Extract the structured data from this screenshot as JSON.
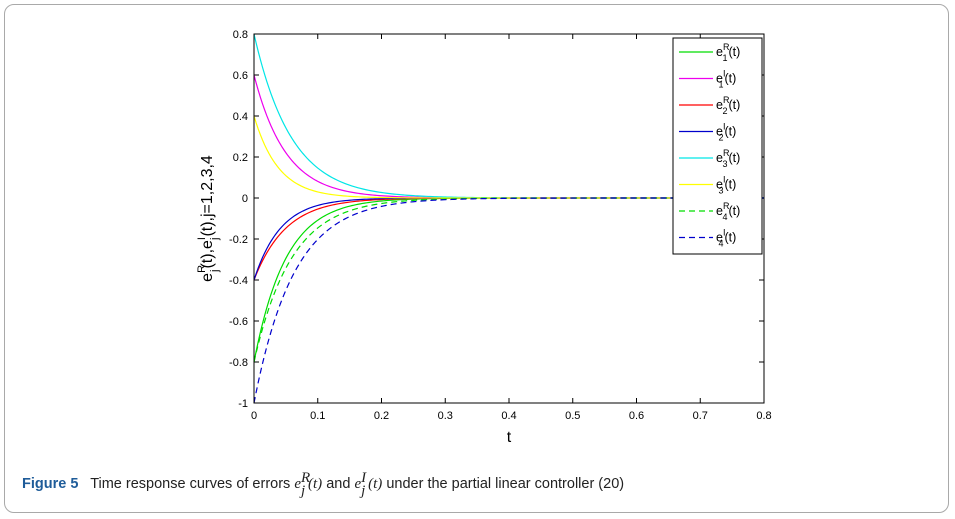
{
  "chart_data": {
    "type": "line",
    "ylabel": "e_j^R(t), e_j^I(t), j=1,2,3,4",
    "ylabel_parts": {
      "base": "e",
      "sup1": "R",
      "sub1": "j",
      "mid": "(t),e",
      "sup2": "I",
      "sub2": "j",
      "tail": "(t),j=1,2,3,4"
    },
    "xlabel": "t",
    "xlim": [
      0,
      0.8
    ],
    "ylim": [
      -1,
      0.8
    ],
    "xticks": [
      "0",
      "0.1",
      "0.2",
      "0.3",
      "0.4",
      "0.5",
      "0.6",
      "0.7",
      "0.8"
    ],
    "yticks": [
      "0.8",
      "0.6",
      "0.4",
      "0.2",
      "0",
      "-0.2",
      "-0.4",
      "-0.6",
      "-0.8",
      "-1"
    ],
    "grid": false,
    "legend_position": "top-right",
    "series": [
      {
        "name": "e1R(t)",
        "label_base": "e",
        "label_sup": "R",
        "label_sub": "1",
        "label_tail": "(t)",
        "color": "#00dd00",
        "dash": "solid",
        "initial": -0.8,
        "decay": 20
      },
      {
        "name": "e1I(t)",
        "label_base": "e",
        "label_sup": "I",
        "label_sub": "1",
        "label_tail": "(t)",
        "color": "#ee00ee",
        "dash": "solid",
        "initial": 0.6,
        "decay": 20
      },
      {
        "name": "e2R(t)",
        "label_base": "e",
        "label_sup": "R",
        "label_sub": "2",
        "label_tail": "(t)",
        "color": "#ff0000",
        "dash": "solid",
        "initial": -0.4,
        "decay": 20
      },
      {
        "name": "e2I(t)",
        "label_base": "e",
        "label_sup": "I",
        "label_sub": "2",
        "label_tail": "(t)",
        "color": "#0000cc",
        "dash": "solid",
        "initial": -0.4,
        "decay": 24
      },
      {
        "name": "e3R(t)",
        "label_base": "e",
        "label_sup": "R",
        "label_sub": "3",
        "label_tail": "(t)",
        "color": "#00e6e6",
        "dash": "solid",
        "initial": 0.8,
        "decay": 17
      },
      {
        "name": "e3I(t)",
        "label_base": "e",
        "label_sup": "I",
        "label_sub": "3",
        "label_tail": "(t)",
        "color": "#ffff00",
        "dash": "solid",
        "initial": 0.4,
        "decay": 26
      },
      {
        "name": "e4R(t)",
        "label_base": "e",
        "label_sup": "R",
        "label_sub": "4",
        "label_tail": "(t)",
        "color": "#00dd00",
        "dash": "dashed",
        "initial": -0.8,
        "decay": 17
      },
      {
        "name": "e4I(t)",
        "label_base": "e",
        "label_sup": "I",
        "label_sub": "4",
        "label_tail": "(t)",
        "color": "#0000cc",
        "dash": "dashed",
        "initial": -1.0,
        "decay": 16
      }
    ]
  },
  "caption": {
    "label": "Figure 5",
    "text_before": "Time response curves of errors",
    "e1": {
      "base": "e",
      "sup": "R",
      "sub": "j",
      "tail": "(t)"
    },
    "conj": "and",
    "e2": {
      "base": "e",
      "sup": "I",
      "sub": "j",
      "tail": "(t)"
    },
    "text_after": "under the partial linear controller (20)"
  }
}
